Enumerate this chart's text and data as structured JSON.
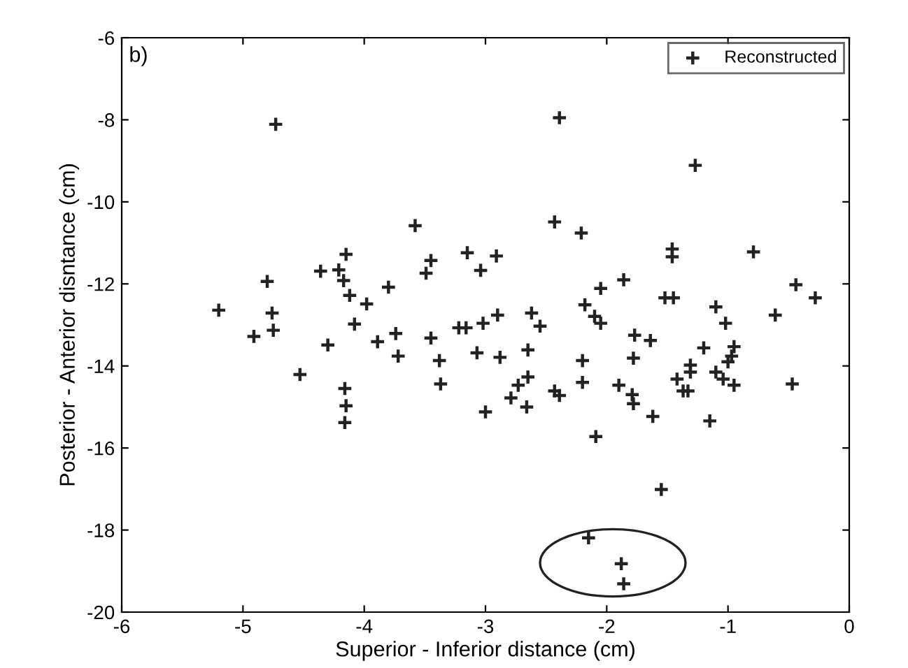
{
  "chart_data": {
    "type": "scatter",
    "xlabel": "Superior - Inferior distance (cm)",
    "ylabel": "Posterior - Anterior disntance (cm)",
    "annotations": [
      "b)"
    ],
    "xlim": [
      -6,
      0
    ],
    "ylim": [
      -20,
      -6
    ],
    "xticks": [
      -6,
      -5,
      -4,
      -3,
      -2,
      -1,
      0
    ],
    "yticks": [
      -20,
      -18,
      -16,
      -14,
      -12,
      -10,
      -8,
      -6
    ],
    "grid": false,
    "legend": "top right",
    "marker": "cross",
    "series": [
      {
        "name": "Reconstructed",
        "color": "#222222",
        "x": [
          -4.73,
          -5.2,
          -4.8,
          -4.76,
          -4.75,
          -4.91,
          -4.36,
          -4.21,
          -4.15,
          -4.17,
          -4.12,
          -3.98,
          -4.08,
          -3.8,
          -3.74,
          -3.58,
          -3.49,
          -3.45,
          -3.45,
          -3.22,
          -3.16,
          -3.15,
          -3.04,
          -3.02,
          -2.39,
          -1.27,
          -2.43,
          -2.21,
          -1.46,
          -1.46,
          -0.79,
          -2.91,
          -2.9,
          -2.62,
          -2.55,
          -2.05,
          -1.86,
          -2.18,
          -2.1,
          -2.05,
          -1.52,
          -1.45,
          -1.1,
          -1.02,
          -0.61,
          -0.44,
          -0.28,
          -1.77,
          -4.3,
          -3.89,
          -3.72,
          -4.53,
          -4.16,
          -4.15,
          -4.16,
          -3.38,
          -3.37,
          -3.07,
          -3.0,
          -2.88,
          -2.65,
          -2.65,
          -2.73,
          -2.79,
          -2.66,
          -2.43,
          -2.39,
          -2.2,
          -2.2,
          -2.09,
          -1.9,
          -1.78,
          -1.64,
          -1.79,
          -1.78,
          -1.62,
          -1.55,
          -2.15,
          -1.88,
          -1.86,
          -1.2,
          -0.95,
          -0.97,
          -1.0,
          -1.31,
          -1.31,
          -1.42,
          -1.37,
          -1.33,
          -1.1,
          -1.04,
          -0.95,
          -1.15,
          -0.47
        ],
        "values": [
          -8.11,
          -12.64,
          -11.94,
          -12.71,
          -13.13,
          -13.28,
          -11.69,
          -11.66,
          -11.28,
          -11.92,
          -12.28,
          -12.49,
          -12.98,
          -12.08,
          -13.21,
          -10.58,
          -11.74,
          -11.43,
          -13.32,
          -13.07,
          -13.07,
          -11.24,
          -11.67,
          -12.96,
          -7.95,
          -9.11,
          -10.49,
          -10.76,
          -11.15,
          -11.34,
          -11.22,
          -11.32,
          -12.76,
          -12.71,
          -13.03,
          -12.11,
          -11.9,
          -12.51,
          -12.79,
          -12.96,
          -12.34,
          -12.34,
          -12.56,
          -12.96,
          -12.76,
          -12.02,
          -12.34,
          -13.25,
          -13.49,
          -13.41,
          -13.76,
          -14.21,
          -14.55,
          -14.97,
          -15.38,
          -13.87,
          -14.44,
          -13.68,
          -15.12,
          -13.79,
          -13.61,
          -14.27,
          -14.47,
          -14.78,
          -15.0,
          -14.61,
          -14.72,
          -13.87,
          -14.4,
          -15.72,
          -14.47,
          -13.81,
          -13.38,
          -14.7,
          -14.92,
          -15.23,
          -17.01,
          -18.19,
          -18.82,
          -19.31,
          -13.56,
          -13.53,
          -13.76,
          -13.9,
          -13.98,
          -14.15,
          -14.32,
          -14.61,
          -14.61,
          -14.15,
          -14.32,
          -14.47,
          -15.34,
          -14.44
        ]
      }
    ]
  }
}
